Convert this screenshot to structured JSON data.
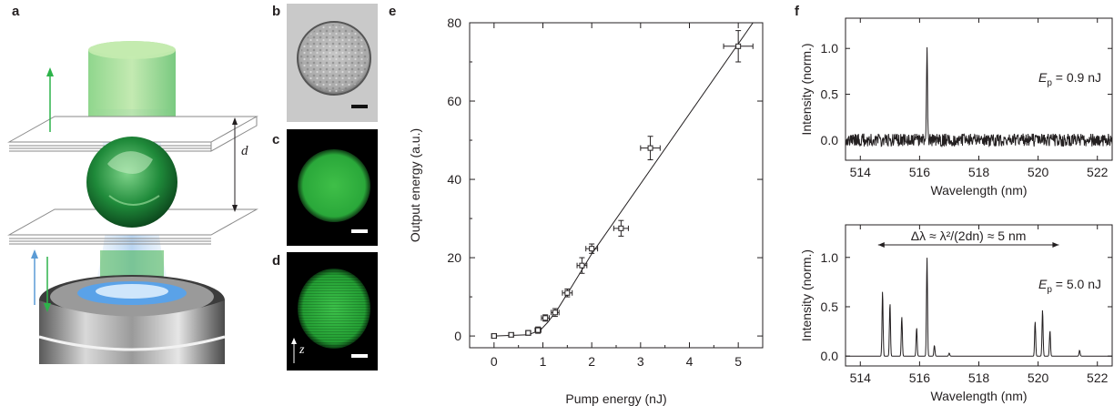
{
  "panels": {
    "a": "a",
    "b": "b",
    "c": "c",
    "d": "d",
    "e": "e",
    "f": "f"
  },
  "panel_a": {
    "d_label": "d"
  },
  "panel_d": {
    "z_label": "z"
  },
  "colors": {
    "green": "#2db34a",
    "blue": "#5b9bd5",
    "ink": "#231f20"
  },
  "chart_data": [
    {
      "type": "scatter",
      "panel": "e",
      "xlabel": "Pump energy (nJ)",
      "ylabel": "Output energy (a.u.)",
      "xlim": [
        -0.5,
        5.5
      ],
      "ylim": [
        -3,
        80
      ],
      "xticks": [
        "0",
        "1",
        "2",
        "3",
        "4",
        "5"
      ],
      "yticks": [
        "0",
        "20",
        "40",
        "60",
        "80"
      ],
      "points": [
        {
          "x": 0.0,
          "y": 0.0,
          "xerr": 0.05,
          "yerr": 0.5
        },
        {
          "x": 0.35,
          "y": 0.3,
          "xerr": 0.05,
          "yerr": 0.5
        },
        {
          "x": 0.7,
          "y": 0.8,
          "xerr": 0.05,
          "yerr": 0.6
        },
        {
          "x": 0.9,
          "y": 1.5,
          "xerr": 0.06,
          "yerr": 0.8
        },
        {
          "x": 1.05,
          "y": 4.6,
          "xerr": 0.08,
          "yerr": 0.8
        },
        {
          "x": 1.25,
          "y": 6.0,
          "xerr": 0.08,
          "yerr": 1.0
        },
        {
          "x": 1.5,
          "y": 11.0,
          "xerr": 0.1,
          "yerr": 1.0
        },
        {
          "x": 1.8,
          "y": 18.0,
          "xerr": 0.1,
          "yerr": 2.0
        },
        {
          "x": 2.0,
          "y": 22.3,
          "xerr": 0.12,
          "yerr": 1.2
        },
        {
          "x": 2.6,
          "y": 27.5,
          "xerr": 0.15,
          "yerr": 2.0
        },
        {
          "x": 3.2,
          "y": 48.0,
          "xerr": 0.2,
          "yerr": 3.0
        },
        {
          "x": 5.0,
          "y": 74.0,
          "xerr": 0.3,
          "yerr": 4.0
        }
      ],
      "fit_line": [
        {
          "x": 0.0,
          "y": 0.0
        },
        {
          "x": 0.7,
          "y": 0.3
        },
        {
          "x": 0.95,
          "y": 1.5
        },
        {
          "x": 1.1,
          "y": 3.5
        },
        {
          "x": 1.3,
          "y": 6.8
        },
        {
          "x": 1.6,
          "y": 12.8
        },
        {
          "x": 2.0,
          "y": 21.0
        },
        {
          "x": 5.3,
          "y": 80.0
        }
      ]
    },
    {
      "type": "line",
      "panel": "f-top",
      "xlabel": "Wavelength (nm)",
      "ylabel": "Intensity (norm.)",
      "xlim": [
        513.5,
        522.5
      ],
      "ylim": [
        -0.22,
        1.33
      ],
      "xticks": [
        "514",
        "516",
        "518",
        "520",
        "522"
      ],
      "yticks": [
        "0.0",
        "0.5",
        "1.0"
      ],
      "noise_level": 0.07,
      "peaks": [
        {
          "x": 516.25,
          "y": 1.0
        }
      ],
      "annotation": {
        "E": "E",
        "sub": "p",
        "value": " = 0.9 nJ"
      }
    },
    {
      "type": "line",
      "panel": "f-bottom",
      "xlabel": "Wavelength (nm)",
      "ylabel": "Intensity (norm.)",
      "xlim": [
        513.5,
        522.5
      ],
      "ylim": [
        -0.1,
        1.33
      ],
      "xticks": [
        "514",
        "516",
        "518",
        "520",
        "522"
      ],
      "yticks": [
        "0.0",
        "0.5",
        "1.0"
      ],
      "peaks": [
        {
          "x": 514.75,
          "y": 0.66
        },
        {
          "x": 515.0,
          "y": 0.54
        },
        {
          "x": 515.4,
          "y": 0.4
        },
        {
          "x": 515.9,
          "y": 0.29
        },
        {
          "x": 516.25,
          "y": 1.0
        },
        {
          "x": 516.5,
          "y": 0.11
        },
        {
          "x": 517.0,
          "y": 0.03
        },
        {
          "x": 519.9,
          "y": 0.35
        },
        {
          "x": 520.15,
          "y": 0.47
        },
        {
          "x": 520.4,
          "y": 0.26
        },
        {
          "x": 521.4,
          "y": 0.06
        }
      ],
      "annotation": {
        "E": "E",
        "sub": "p",
        "value": " = 5.0 nJ"
      },
      "range_label": "Δλ ≈ λ²/(2dn) ≈ 5 nm",
      "range_arrow": [
        514.6,
        520.7
      ]
    }
  ]
}
